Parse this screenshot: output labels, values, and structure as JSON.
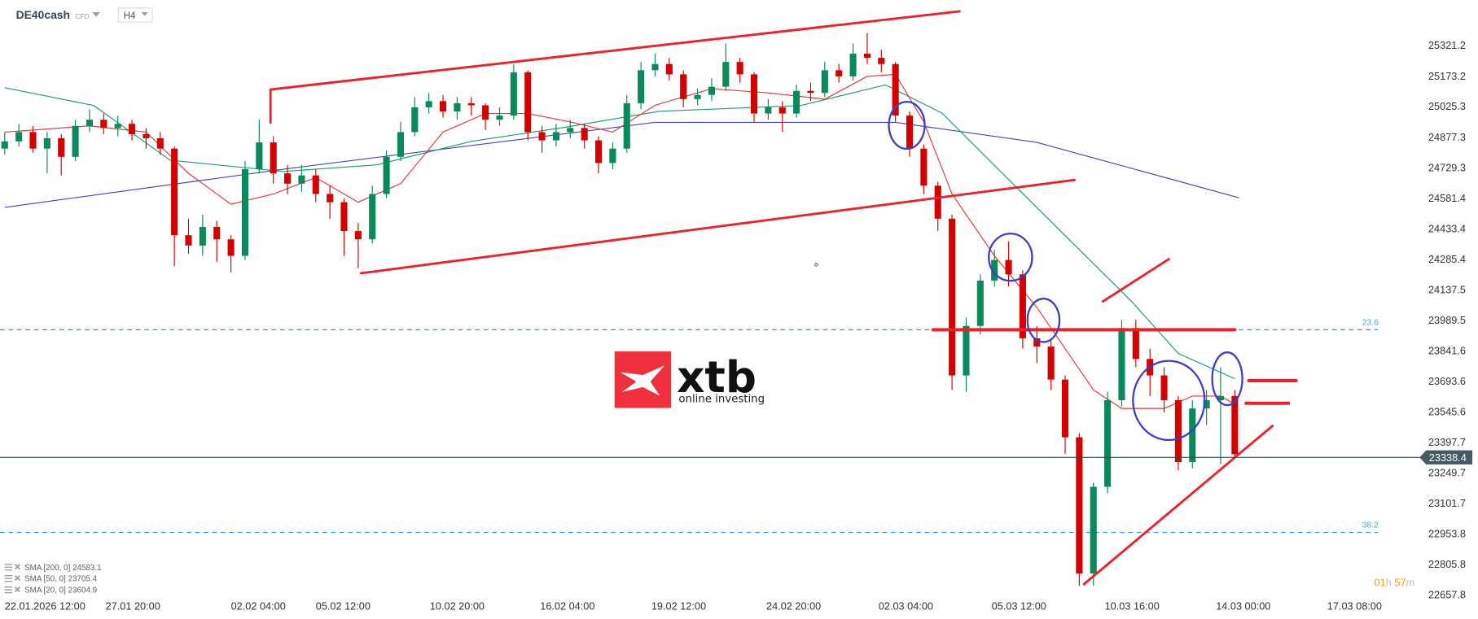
{
  "header": {
    "symbol": "DE40cash",
    "instrument_type": "CFD",
    "timeframe": "H4"
  },
  "legend": [
    {
      "label": "SMA [200,  0] 24583.1",
      "color": "#3f47b5"
    },
    {
      "label": "SMA [50,  0] 23705.4",
      "color": "#1e9b6b"
    },
    {
      "label": "SMA [20,  0] 23604.9",
      "color": "#e53935"
    }
  ],
  "timer": {
    "hours": "01",
    "h": "h",
    "minutes": "57",
    "m": "m"
  },
  "logo": {
    "brand": "xtb",
    "tagline": "online investing",
    "color": "#f0303d"
  },
  "current_price": "23338.4",
  "fib_levels": [
    {
      "label": "23.6",
      "price": 23941.7
    },
    {
      "label": "38.2",
      "price": 22959
    }
  ],
  "colors": {
    "up": "#0a8a5a",
    "down": "#d50000",
    "drawing": "#f0202a",
    "circle": "#3b3fc9",
    "fib": "#2196f3"
  },
  "chart_data": {
    "type": "candlestick",
    "y_ticks": [
      "25321.2",
      "25173.2",
      "25025.3",
      "24877.3",
      "24729.3",
      "24581.4",
      "24433.4",
      "24285.4",
      "24137.5",
      "23989.5",
      "23841.6",
      "23693.6",
      "23545.6",
      "23397.7",
      "23249.7",
      "23101.7",
      "22953.8",
      "22805.8",
      "22657.8"
    ],
    "ylim": [
      22657.8,
      25321.2
    ],
    "x_ticks": [
      "22.01.2026  12:00",
      "27.01  20:00",
      "02.02  04:00",
      "05.02  12:00",
      "10.02  20:00",
      "16.02  04:00",
      "19.02  12:00",
      "24.02  20:00",
      "02.03  04:00",
      "05.03  12:00",
      "10.03  16:00",
      "14.03  00:00",
      "17.03  08:00"
    ],
    "first_open": 24820,
    "closes": [
      24855,
      24900,
      24820,
      24870,
      24780,
      24930,
      24960,
      24920,
      24940,
      24890,
      24870,
      24820,
      24400,
      24350,
      24440,
      24380,
      24300,
      24720,
      24850,
      24700,
      24650,
      24690,
      24600,
      24560,
      24420,
      24380,
      24600,
      24780,
      24900,
      25020,
      25050,
      25000,
      25040,
      25030,
      24960,
      24980,
      25190,
      24900,
      24860,
      24900,
      24920,
      24860,
      24750,
      24820,
      25040,
      25200,
      25230,
      25180,
      25060,
      25080,
      25120,
      25240,
      25180,
      24990,
      25020,
      24990,
      25100,
      25090,
      25200,
      25170,
      25280,
      25260,
      25230,
      24980,
      24820,
      24640,
      24480,
      23720,
      23960,
      24180,
      24280,
      24210,
      23900,
      23860,
      23700,
      23420,
      22760,
      23180,
      23600,
      23950,
      23800,
      23720,
      23600,
      23300,
      23560,
      23600,
      23620,
      23338
    ],
    "highs": [
      24900,
      24940,
      24930,
      24900,
      24890,
      24960,
      25010,
      24990,
      24980,
      24960,
      24920,
      24900,
      24830,
      24480,
      24500,
      24470,
      24400,
      24760,
      24960,
      24880,
      24740,
      24740,
      24720,
      24640,
      24580,
      24460,
      24640,
      24810,
      24950,
      25070,
      25090,
      25080,
      25070,
      25070,
      25040,
      25020,
      25230,
      25200,
      24930,
      24940,
      24960,
      24940,
      24880,
      24850,
      25080,
      25240,
      25280,
      25260,
      25200,
      25110,
      25160,
      25330,
      25260,
      25190,
      25060,
      25050,
      25130,
      25140,
      25240,
      25230,
      25330,
      25380,
      25300,
      25240,
      25000,
      24840,
      24660,
      24500,
      24000,
      24210,
      24330,
      24370,
      24230,
      23960,
      23900,
      23720,
      23440,
      23200,
      23640,
      23990,
      23990,
      23850,
      23760,
      23620,
      23600,
      23650,
      23760,
      23650
    ],
    "lows": [
      24790,
      24830,
      24800,
      24700,
      24690,
      24760,
      24900,
      24890,
      24880,
      24860,
      24820,
      24790,
      24250,
      24310,
      24300,
      24270,
      24220,
      24280,
      24700,
      24650,
      24600,
      24610,
      24560,
      24480,
      24300,
      24240,
      24360,
      24580,
      24760,
      24880,
      24990,
      24970,
      24960,
      24980,
      24910,
      24930,
      24960,
      24860,
      24800,
      24830,
      24870,
      24820,
      24700,
      24720,
      24800,
      25010,
      25170,
      25150,
      25020,
      25030,
      25050,
      25100,
      25140,
      24950,
      24960,
      24900,
      24970,
      25050,
      25070,
      25140,
      25150,
      25230,
      25190,
      24950,
      24780,
      24600,
      24420,
      23650,
      23640,
      23920,
      24150,
      24150,
      23850,
      23780,
      23650,
      23340,
      22700,
      22700,
      23150,
      23570,
      23760,
      23620,
      23540,
      23260,
      23270,
      23480,
      23290,
      23320
    ],
    "series": [
      {
        "name": "SMA [200, 0]",
        "color": "#3f47b5",
        "points": [
          [
            0,
            24535
          ],
          [
            19.7,
            24720
          ],
          [
            46,
            24947
          ],
          [
            63,
            24947
          ],
          [
            73,
            24850
          ],
          [
            87.3,
            24581
          ]
        ]
      },
      {
        "name": "SMA [50, 0]",
        "color": "#1e9b6b",
        "points": [
          [
            0,
            25115
          ],
          [
            6.3,
            25029
          ],
          [
            11.7,
            24764
          ],
          [
            19.7,
            24709
          ],
          [
            26.3,
            24741
          ],
          [
            33,
            24855
          ],
          [
            39.7,
            24924
          ],
          [
            46.3,
            25001
          ],
          [
            56.3,
            25029
          ],
          [
            62.3,
            25129
          ],
          [
            66.3,
            24992
          ],
          [
            70.3,
            24718
          ],
          [
            75,
            24398
          ],
          [
            79.7,
            24079
          ],
          [
            83,
            23827
          ],
          [
            87,
            23704
          ]
        ]
      },
      {
        "name": "SMA [20, 0]",
        "color": "#e53935",
        "points": [
          [
            0,
            24900
          ],
          [
            6,
            24930
          ],
          [
            10,
            24900
          ],
          [
            13,
            24700
          ],
          [
            16,
            24550
          ],
          [
            19,
            24600
          ],
          [
            22,
            24680
          ],
          [
            25,
            24560
          ],
          [
            28,
            24650
          ],
          [
            31,
            24900
          ],
          [
            34,
            24990
          ],
          [
            37,
            24990
          ],
          [
            40,
            24950
          ],
          [
            43,
            24900
          ],
          [
            46,
            25030
          ],
          [
            50,
            25110
          ],
          [
            54,
            25090
          ],
          [
            58,
            25060
          ],
          [
            61,
            25170
          ],
          [
            63,
            25180
          ],
          [
            65,
            24950
          ],
          [
            67,
            24600
          ],
          [
            70,
            24300
          ],
          [
            73,
            24050
          ],
          [
            75,
            23850
          ],
          [
            77,
            23650
          ],
          [
            79,
            23560
          ],
          [
            82,
            23560
          ],
          [
            84,
            23620
          ],
          [
            86,
            23620
          ],
          [
            87,
            23580
          ]
        ]
      }
    ]
  }
}
